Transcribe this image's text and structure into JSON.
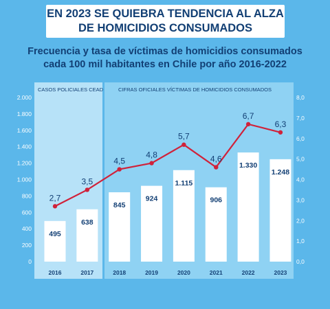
{
  "headline": {
    "line1": "EN 2023 SE QUIEBRA TENDENCIA AL ALZA",
    "line2": "DE HOMICIDIOS CONSUMADOS"
  },
  "subtitle": {
    "line1": "Frecuencia y tasa de víctimas de homicidios consumados",
    "line2": "cada 100 mil habitantes en Chile por año 2016-2022"
  },
  "sections": {
    "left_label": "CASOS POLICIALES CEAD",
    "right_label": "CIFRAS OFICIALES VÍCTIMAS DE HOMICIDIOS CONSUMADOS"
  },
  "colors": {
    "background": "#5bb7ea",
    "panel": "#8fd2f3",
    "panel_light": "#b7e2f8",
    "bar": "#ffffff",
    "bar_text": "#123f74",
    "line": "#d0223a",
    "text": "#123f74"
  },
  "chart_data": {
    "type": "bar",
    "categories": [
      "2016",
      "2017",
      "2018",
      "2019",
      "2020",
      "2021",
      "2022",
      "2023"
    ],
    "series": [
      {
        "type": "bar",
        "axis": "left",
        "values": [
          495,
          638,
          845,
          924,
          1115,
          906,
          1330,
          1248
        ],
        "labels": [
          "495",
          "638",
          "845",
          "924",
          "1.115",
          "906",
          "1.330",
          "1.248"
        ]
      },
      {
        "type": "line",
        "axis": "right",
        "values": [
          2.7,
          3.5,
          4.5,
          4.8,
          5.7,
          4.6,
          6.7,
          6.3
        ],
        "labels": [
          "2,7",
          "3,5",
          "4,5",
          "4,8",
          "5,7",
          "4,6",
          "6,7",
          "6,3"
        ]
      }
    ],
    "left_axis": {
      "ylim": [
        0,
        2000
      ],
      "ticks": [
        0,
        200,
        400,
        600,
        800,
        1000,
        1200,
        1400,
        1600,
        1800,
        2000
      ],
      "tick_labels": [
        "0",
        "200",
        "400",
        "600",
        "800",
        "1.000",
        "1.200",
        "1.400",
        "1.600",
        "1.800",
        "2.000"
      ]
    },
    "right_axis": {
      "ylim": [
        0,
        8
      ],
      "ticks": [
        0,
        1,
        2,
        3,
        4,
        5,
        6,
        7,
        8
      ],
      "tick_labels": [
        "0,0",
        "1,0",
        "2,0",
        "3,0",
        "4,0",
        "5,0",
        "6,0",
        "7,0",
        "8,0"
      ]
    },
    "grid": false,
    "legend": "none"
  }
}
